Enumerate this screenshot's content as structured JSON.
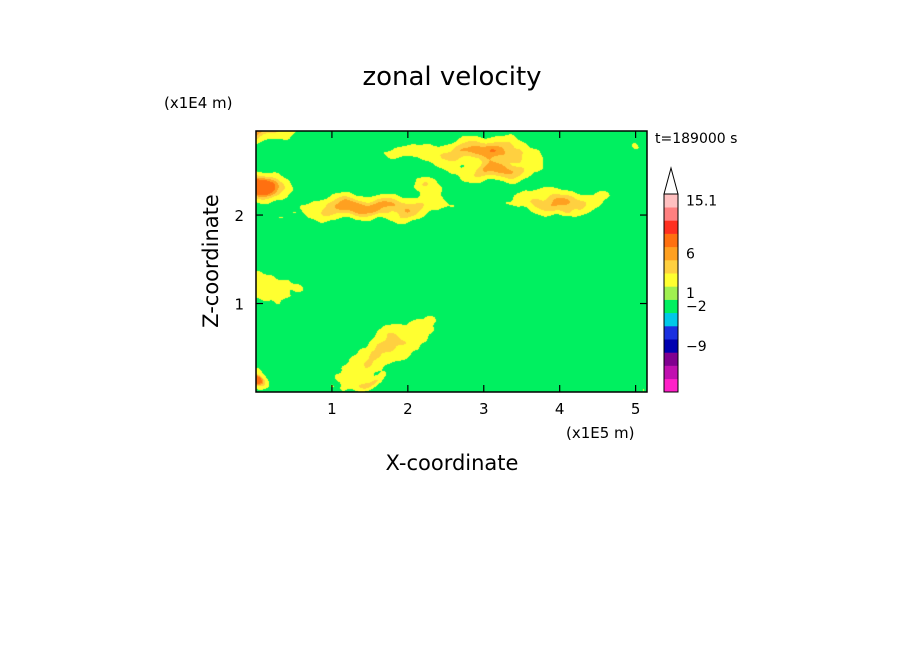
{
  "chart_data": {
    "type": "heatmap",
    "title": "zonal velocity",
    "xlabel": "X-coordinate",
    "ylabel": "Z-coordinate",
    "x_unit": "(x1E5 m)",
    "y_unit": "(x1E4 m)",
    "time_label": "t=189000 s",
    "xlim": [
      0,
      5.15
    ],
    "ylim": [
      0,
      2.95
    ],
    "x_ticks": [
      1,
      2,
      3,
      4,
      5
    ],
    "y_ticks": [
      1,
      2
    ],
    "colorbar": {
      "labels": [
        "15.1",
        "6",
        "1",
        "-2",
        "-9"
      ],
      "colors": [
        "#ff20c8",
        "#c010b0",
        "#800090",
        "#0000b0",
        "#1a30e0",
        "#00c8e8",
        "#00f060",
        "#a0f050",
        "#ffff30",
        "#ffd040",
        "#ffa020",
        "#ff7010",
        "#ff3020",
        "#ff8080",
        "#ffc0c0"
      ]
    },
    "fields": [
      {
        "level": 0.0,
        "blobs": [
          [
            0,
            1.65,
            2.95,
            0,
            0.42,
            0.13,
            0.45,
            0.1
          ],
          [
            0,
            0.4,
            0.1,
            0,
            0.18,
            0.18,
            0.29,
            0.35
          ]
        ]
      },
      {
        "level": 0.5,
        "blobs": [
          [
            1.7,
            1.0,
            0.45,
            0.5,
            0.6,
            0.2,
            0.2,
            0.85
          ],
          [
            0,
            0.5,
            1.15,
            0,
            0.8,
            0.2,
            0.15,
            0.7
          ],
          [
            1.15,
            0.9,
            2.15,
            0,
            0.35,
            0.09,
            0.2,
            0.8
          ],
          [
            1.55,
            1.4,
            2.08,
            0.06,
            0.8,
            0.09,
            0.1,
            0.7
          ],
          [
            2.9,
            1.4,
            2.72,
            0.02,
            0.65,
            0.12,
            0.25,
            1.2
          ],
          [
            3.2,
            1.5,
            2.5,
            0.1,
            0.45,
            0.1,
            0.2,
            2.5
          ],
          [
            4.0,
            1.3,
            2.15,
            0.05,
            0.55,
            0.1,
            0.3,
            0.4
          ],
          [
            0,
            2.4,
            2.3,
            0,
            0.3,
            0.12,
            0.3,
            1.9
          ],
          [
            0,
            2.6,
            0.1,
            0,
            0.1,
            0.05,
            0.4,
            1.1
          ],
          [
            1.5,
            1.0,
            0.1,
            0.2,
            0.18,
            0.05,
            0.5,
            0.5
          ]
        ]
      },
      {
        "level": 1.0,
        "blobs": [
          [
            1.95,
            0.7,
            2.0,
            0.05,
            0.3,
            0.08,
            0.2,
            1.4
          ],
          [
            1.9,
            0.55,
            2.72,
            0.03,
            0.25,
            0.06,
            0.2,
            2.1
          ],
          [
            3.25,
            0.55,
            2.7,
            0.05,
            0.25,
            0.08,
            0.3,
            2.6
          ],
          [
            4.1,
            0.5,
            2.05,
            0.02,
            0.15,
            0.05,
            0.2,
            1.0
          ],
          [
            0.1,
            0.5,
            2.35,
            0,
            0.2,
            0.1,
            0.3,
            2.2
          ],
          [
            3.85,
            0.55,
            2.25,
            -0.15,
            0.2,
            0.08,
            0.3,
            1.5
          ],
          [
            0.05,
            0.25,
            0.08,
            0,
            0.08,
            0.04,
            0.3,
            1.7
          ]
        ]
      },
      {
        "level": 1.5,
        "blobs": [
          [
            1.7,
            0.18,
            2.0,
            0,
            0.05,
            0.03,
            0.3,
            0.5
          ],
          [
            3.0,
            0.25,
            1.78,
            0,
            0.05,
            0.03,
            0.3,
            1.5
          ],
          [
            4.1,
            0.25,
            2.03,
            0,
            0.06,
            0.03,
            0.3,
            2.5
          ],
          [
            3.7,
            0.18,
            2.55,
            0,
            0.05,
            0.03,
            0.3,
            1.1
          ],
          [
            0.1,
            0.15,
            2.35,
            0,
            0.06,
            0.04,
            0.3,
            0.3
          ]
        ]
      },
      {
        "level": -1.0,
        "blobs": [
          [
            0.25,
            0.4,
            2.28,
            0,
            0.22,
            0.1,
            0.25,
            0.9
          ],
          [
            0.35,
            0.2,
            1.95,
            0,
            0.1,
            0.05,
            0.3,
            2.0
          ],
          [
            2.28,
            0.6,
            2.35,
            0,
            0.18,
            0.12,
            0.25,
            1.7
          ],
          [
            3.4,
            0.35,
            2.6,
            0,
            0.15,
            0.07,
            0.3,
            0.6
          ],
          [
            2.6,
            0.2,
            1.4,
            0,
            0.1,
            0.06,
            0.3,
            2.8
          ],
          [
            1.75,
            0.25,
            0.65,
            0,
            0.1,
            0.04,
            0.3,
            1.2
          ],
          [
            5.0,
            0.3,
            2.8,
            0,
            0.15,
            0.1,
            0.3,
            2.3
          ],
          [
            0.4,
            0.1,
            0.45,
            0,
            0.08,
            0.22,
            0.35,
            0.7
          ],
          [
            1.4,
            0.05,
            0.35,
            0,
            0.04,
            0.12,
            0.35,
            2.1
          ],
          [
            4.4,
            0.05,
            0.3,
            0,
            0.04,
            0.12,
            0.35,
            1.3
          ]
        ]
      },
      {
        "level": -2.0,
        "blobs": [
          [
            2.2,
            0.4,
            2.35,
            0,
            0.1,
            0.05,
            0.2,
            0.4
          ],
          [
            3.4,
            0.2,
            2.6,
            0,
            0.09,
            0.035,
            0.2,
            1.3
          ],
          [
            4.15,
            0.28,
            1.77,
            0,
            0.06,
            0.03,
            0.2,
            2.7
          ],
          [
            2.1,
            0.05,
            1.55,
            0,
            0.04,
            0.02,
            0.2,
            1.9
          ],
          [
            0.38,
            0.04,
            0.55,
            0,
            0.03,
            0.06,
            0.3,
            0.2
          ],
          [
            1.35,
            0.025,
            0.3,
            0,
            0.02,
            0.05,
            0.3,
            1.6
          ],
          [
            4.35,
            0.025,
            0.35,
            0,
            0.02,
            0.05,
            0.3,
            2.4
          ]
        ]
      },
      {
        "level": 1.5,
        "blobs": [
          [
            0,
            0.35,
            0.06,
            0,
            0.03,
            0.03,
            0.4,
            0.9
          ],
          [
            5.1,
            0.3,
            0.06,
            0,
            0.03,
            0.03,
            0.4,
            2.9
          ],
          [
            1.45,
            0.05,
            0.3,
            0,
            0.02,
            0.06,
            0.3,
            0.1
          ]
        ]
      }
    ]
  }
}
